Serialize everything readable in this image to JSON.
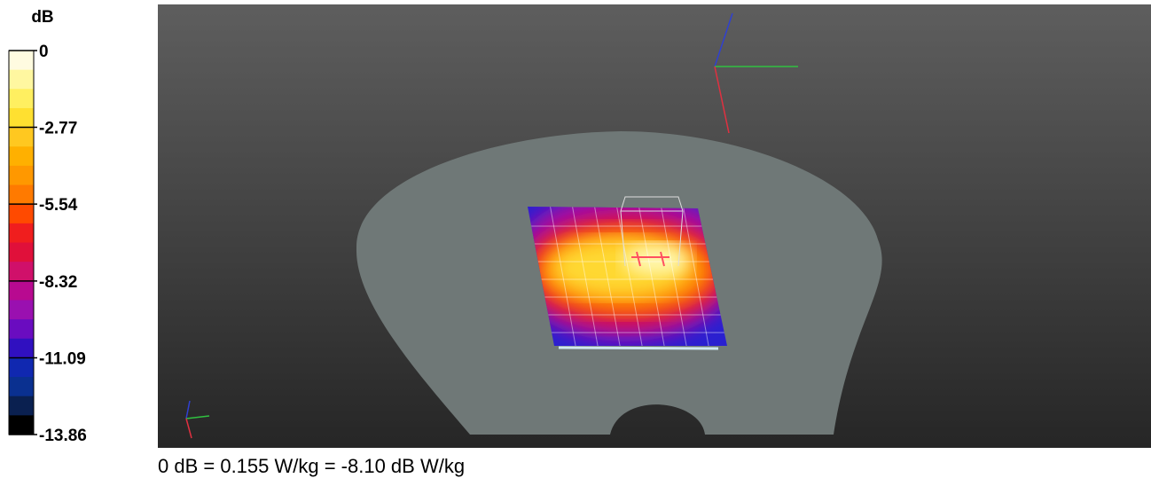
{
  "colorbar": {
    "unit": "dB",
    "ticks": [
      0,
      -2.77,
      -5.54,
      -8.32,
      -11.09,
      -13.86
    ],
    "colors": [
      "#fffbe0",
      "#fff7a0",
      "#ffef60",
      "#ffe030",
      "#ffc820",
      "#ffb000",
      "#ff9800",
      "#ff7a00",
      "#ff4a00",
      "#f01e1e",
      "#e0103a",
      "#d0106a",
      "#b80a90",
      "#9a10b0",
      "#6a0cc0",
      "#3010c0",
      "#1028b0",
      "#0a3090",
      "#0a2050",
      "#000000"
    ]
  },
  "caption": "0 dB = 0.155 W/kg = -8.10 dB W/kg"
}
